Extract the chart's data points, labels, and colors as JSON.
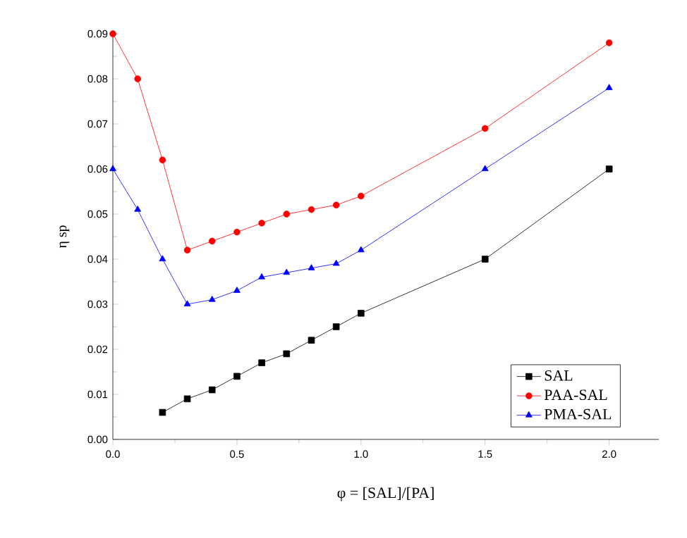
{
  "chart_data": {
    "type": "line",
    "xlabel": "φ = [SAL]/[PA]",
    "ylabel": "η sp",
    "xlim": [
      0,
      2.2
    ],
    "ylim": [
      0,
      0.09
    ],
    "xticks": [
      {
        "value": 0,
        "label": "0.0"
      },
      {
        "value": 0.5,
        "label": "0.5"
      },
      {
        "value": 1,
        "label": "1.0"
      },
      {
        "value": 1.5,
        "label": "1.5"
      },
      {
        "value": 2,
        "label": "2.0"
      }
    ],
    "yticks": [
      {
        "value": 0,
        "label": "0.00"
      },
      {
        "value": 0.01,
        "label": "0.01"
      },
      {
        "value": 0.02,
        "label": "0.02"
      },
      {
        "value": 0.03,
        "label": "0.03"
      },
      {
        "value": 0.04,
        "label": "0.04"
      },
      {
        "value": 0.05,
        "label": "0.05"
      },
      {
        "value": 0.06,
        "label": "0.06"
      },
      {
        "value": 0.07,
        "label": "0.07"
      },
      {
        "value": 0.08,
        "label": "0.08"
      },
      {
        "value": 0.09,
        "label": "0.09"
      }
    ],
    "legend": "bottom right",
    "grid": false,
    "series": [
      {
        "name": "SAL",
        "color": "#000000",
        "marker": "square",
        "x": [
          0.2,
          0.3,
          0.4,
          0.5,
          0.6,
          0.7,
          0.8,
          0.9,
          1.0,
          1.5,
          2.0
        ],
        "values": [
          0.006,
          0.009,
          0.011,
          0.014,
          0.017,
          0.019,
          0.022,
          0.025,
          0.028,
          0.04,
          0.06
        ]
      },
      {
        "name": "PAA-SAL",
        "color": "#ff0000",
        "marker": "circle",
        "x": [
          0,
          0.1,
          0.2,
          0.3,
          0.4,
          0.5,
          0.6,
          0.7,
          0.8,
          0.9,
          1.0,
          1.5,
          2.0
        ],
        "values": [
          0.09,
          0.08,
          0.062,
          0.042,
          0.044,
          0.046,
          0.048,
          0.05,
          0.051,
          0.052,
          0.054,
          0.069,
          0.088
        ]
      },
      {
        "name": "PMA-SAL",
        "color": "#0000ff",
        "marker": "triangle",
        "x": [
          0,
          0.1,
          0.2,
          0.3,
          0.4,
          0.5,
          0.6,
          0.7,
          0.8,
          0.9,
          1.0,
          1.5,
          2.0
        ],
        "values": [
          0.06,
          0.051,
          0.04,
          0.03,
          0.031,
          0.033,
          0.036,
          0.037,
          0.038,
          0.039,
          0.042,
          0.06,
          0.078
        ]
      }
    ]
  }
}
